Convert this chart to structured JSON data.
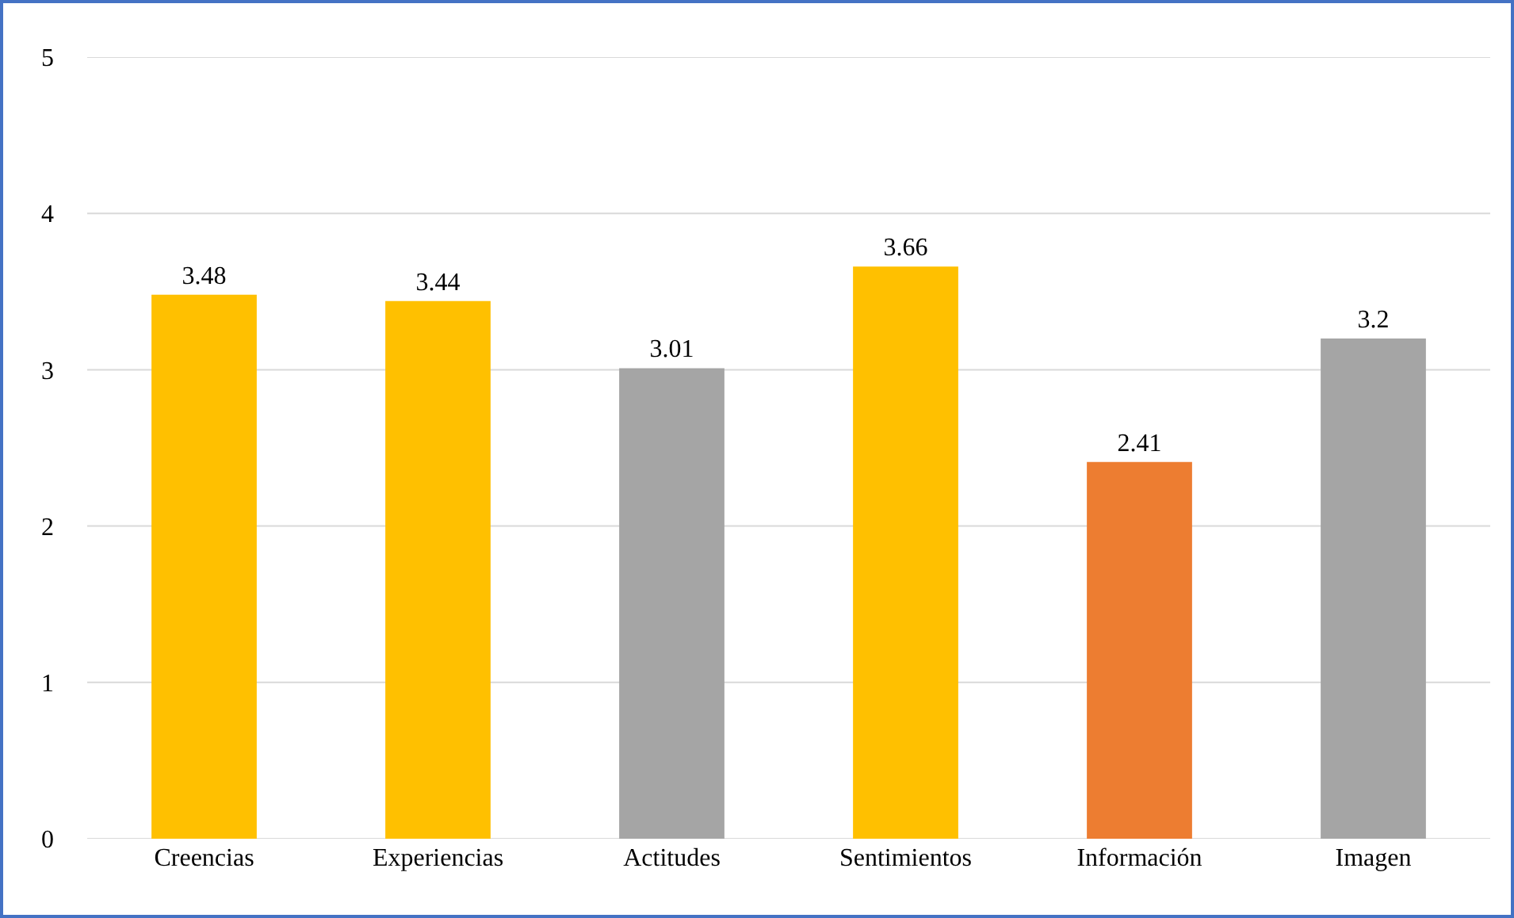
{
  "chart_data": {
    "type": "bar",
    "categories": [
      "Creencias",
      "Experiencias",
      "Actitudes",
      "Sentimientos",
      "Información",
      "Imagen"
    ],
    "values": [
      3.48,
      3.44,
      3.01,
      3.66,
      2.41,
      3.2
    ],
    "colors": [
      "#ffc000",
      "#ffc000",
      "#a5a5a5",
      "#ffc000",
      "#ed7d31",
      "#a5a5a5"
    ],
    "ylim": [
      0,
      5
    ],
    "yticks": [
      0,
      1,
      2,
      3,
      4,
      5
    ],
    "grid": "y",
    "data_labels": true
  }
}
